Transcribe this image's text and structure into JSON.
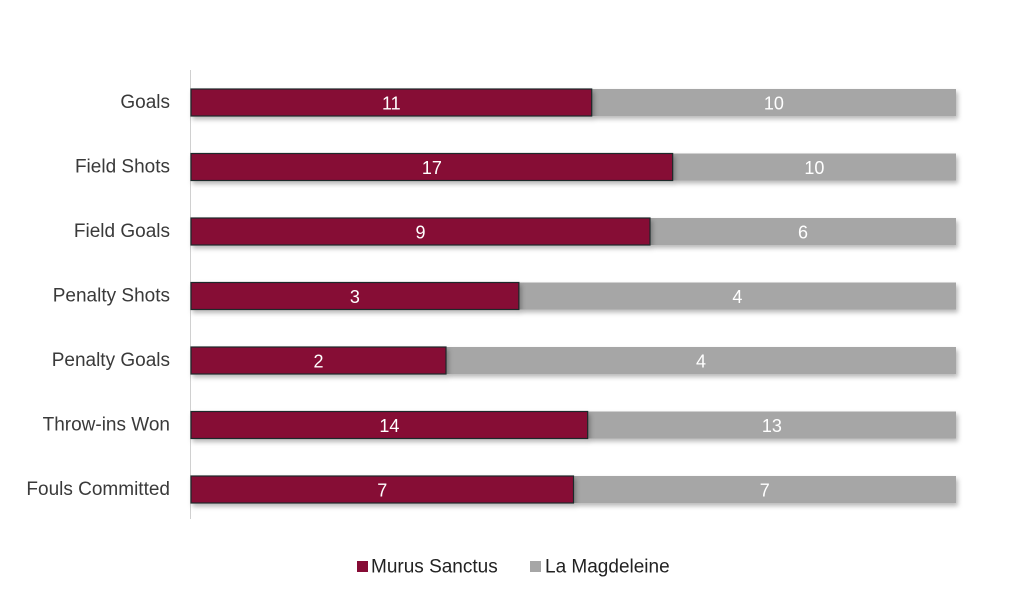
{
  "chart_data": {
    "type": "bar",
    "orientation": "horizontal",
    "stacking": "percent",
    "title": "",
    "categories": [
      "Goals",
      "Field Shots",
      "Field Goals",
      "Penalty Shots",
      "Penalty Goals",
      "Throw-ins Won",
      "Fouls Committed"
    ],
    "series": [
      {
        "name": "Murus Sanctus",
        "values": [
          11,
          17,
          9,
          3,
          2,
          14,
          7
        ]
      },
      {
        "name": "La Magdeleine",
        "values": [
          10,
          10,
          6,
          4,
          4,
          13,
          7
        ]
      }
    ],
    "colors": {
      "Murus Sanctus": "#860b35",
      "La Magdeleine": "#a6a6a6"
    },
    "legend_position": "bottom",
    "grid": false,
    "data_labels": true
  }
}
